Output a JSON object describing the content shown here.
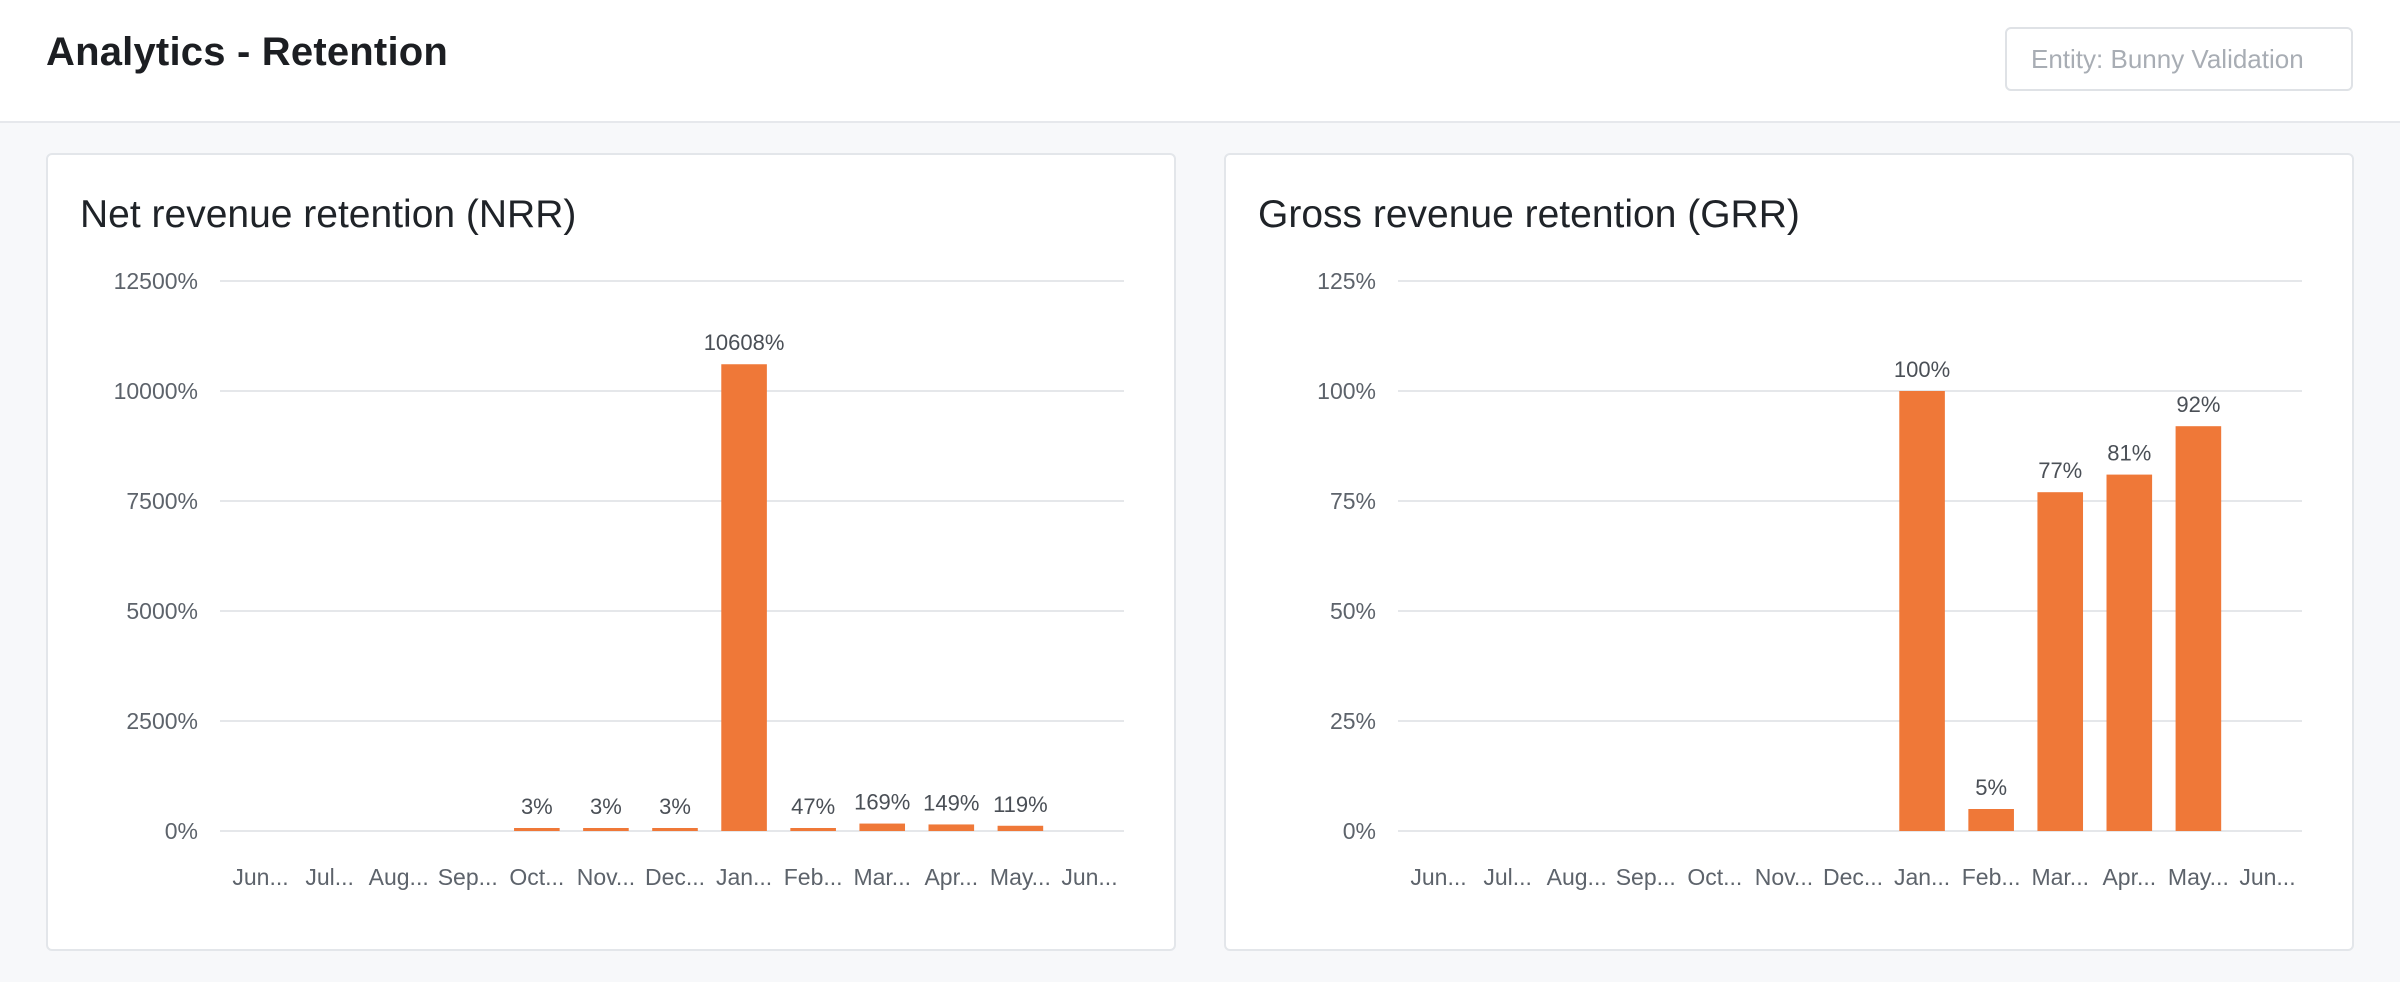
{
  "header": {
    "title": "Analytics - Retention",
    "entity_placeholder": "Entity: Bunny Validation"
  },
  "colors": {
    "bar": "#ef7838",
    "grid": "#e5e7ea",
    "axis_text": "#5d636b"
  },
  "chart_data": [
    {
      "type": "bar",
      "title": "Net revenue retention (NRR)",
      "categories": [
        "Jun...",
        "Jul...",
        "Aug...",
        "Sep...",
        "Oct...",
        "Nov...",
        "Dec...",
        "Jan...",
        "Feb...",
        "Mar...",
        "Apr...",
        "May...",
        "Jun..."
      ],
      "values": [
        null,
        null,
        null,
        null,
        3,
        3,
        3,
        10608,
        47,
        169,
        149,
        119,
        null
      ],
      "data_labels": [
        "",
        "",
        "",
        "",
        "3%",
        "3%",
        "3%",
        "10608%",
        "47%",
        "169%",
        "149%",
        "119%",
        ""
      ],
      "yticks": [
        "0%",
        "2500%",
        "5000%",
        "7500%",
        "10000%",
        "12500%"
      ],
      "ylim": [
        0,
        12500
      ],
      "xlabel": "",
      "ylabel": "",
      "grid": true
    },
    {
      "type": "bar",
      "title": "Gross revenue retention (GRR)",
      "categories": [
        "Jun...",
        "Jul...",
        "Aug...",
        "Sep...",
        "Oct...",
        "Nov...",
        "Dec...",
        "Jan...",
        "Feb...",
        "Mar...",
        "Apr...",
        "May...",
        "Jun..."
      ],
      "values": [
        null,
        null,
        null,
        null,
        null,
        null,
        null,
        100,
        5,
        77,
        81,
        92,
        null
      ],
      "data_labels": [
        "",
        "",
        "",
        "",
        "",
        "",
        "",
        "100%",
        "5%",
        "77%",
        "81%",
        "92%",
        ""
      ],
      "yticks": [
        "0%",
        "25%",
        "50%",
        "75%",
        "100%",
        "125%"
      ],
      "ylim": [
        0,
        125
      ],
      "xlabel": "",
      "ylabel": "",
      "grid": true
    }
  ]
}
